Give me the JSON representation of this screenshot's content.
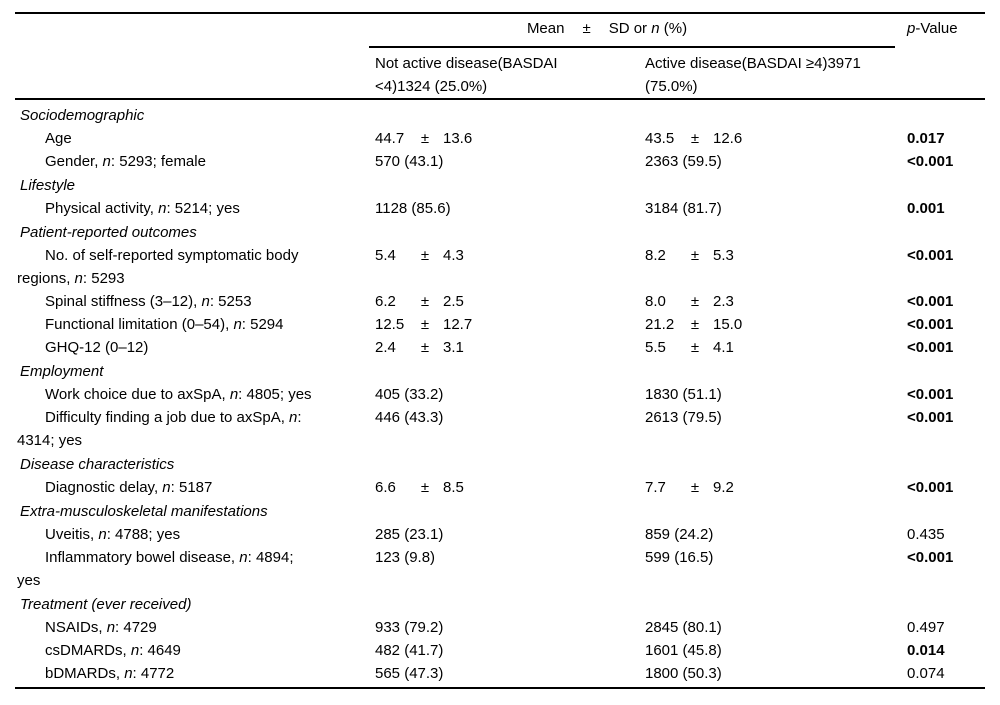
{
  "colors": {
    "background": "#ffffff",
    "text": "#000000",
    "rule": "#000000"
  },
  "table": {
    "pm_symbol": "±",
    "header": {
      "span_title": {
        "mean": "Mean",
        "pm": "±",
        "rest": "SD or *n* (%)"
      },
      "p_value": "*p*-Value",
      "col1_lines": [
        "Not active disease(BASDAI",
        "<4)1324 (25.0%)"
      ],
      "col2_lines": [
        "Active disease(BASDAI ≥4)3971",
        "(75.0%)"
      ]
    },
    "rows": [
      {
        "type": "section",
        "label": "Sociodemographic"
      },
      {
        "type": "item",
        "lines": [
          "Age"
        ],
        "col1": {
          "mean": "44.7",
          "sd": "13.6"
        },
        "col2": {
          "mean": "43.5",
          "sd": "12.6"
        },
        "p": "0.017",
        "p_bold": true
      },
      {
        "type": "item",
        "lines": [
          "Gender, *n*: 5293; female"
        ],
        "col1": {
          "text": "570 (43.1)"
        },
        "col2": {
          "text": "2363 (59.5)"
        },
        "p": "<0.001",
        "p_bold": true
      },
      {
        "type": "section",
        "label": "Lifestyle"
      },
      {
        "type": "item",
        "lines": [
          "Physical activity, *n*: 5214; yes"
        ],
        "col1": {
          "text": "1128 (85.6)"
        },
        "col2": {
          "text": "3184 (81.7)"
        },
        "p": "0.001",
        "p_bold": true
      },
      {
        "type": "section",
        "label": "Patient-reported outcomes"
      },
      {
        "type": "item",
        "lines": [
          "No. of self-reported symptomatic body",
          "regions, *n*: 5293"
        ],
        "col1": {
          "mean": "5.4",
          "sd": "4.3"
        },
        "col2": {
          "mean": "8.2",
          "sd": "5.3"
        },
        "p": "<0.001",
        "p_bold": true
      },
      {
        "type": "item",
        "lines": [
          "Spinal stiffness (3–12), *n*: 5253"
        ],
        "col1": {
          "mean": "6.2",
          "sd": "2.5"
        },
        "col2": {
          "mean": "8.0",
          "sd": "2.3"
        },
        "p": "<0.001",
        "p_bold": true
      },
      {
        "type": "item",
        "lines": [
          "Functional limitation (0–54), *n*: 5294"
        ],
        "col1": {
          "mean": "12.5",
          "sd": "12.7"
        },
        "col2": {
          "mean": "21.2",
          "sd": "15.0"
        },
        "p": "<0.001",
        "p_bold": true
      },
      {
        "type": "item",
        "lines": [
          "GHQ-12 (0–12)"
        ],
        "col1": {
          "mean": "2.4",
          "sd": "3.1"
        },
        "col2": {
          "mean": "5.5",
          "sd": "4.1"
        },
        "p": "<0.001",
        "p_bold": true
      },
      {
        "type": "section",
        "label": "Employment"
      },
      {
        "type": "item",
        "lines": [
          "Work choice due to axSpA, *n*: 4805; yes"
        ],
        "col1": {
          "text": "405 (33.2)"
        },
        "col2": {
          "text": "1830 (51.1)"
        },
        "p": "<0.001",
        "p_bold": true
      },
      {
        "type": "item",
        "lines": [
          "Difficulty finding a job due to axSpA, *n*:",
          "4314; yes"
        ],
        "col1": {
          "text": "446 (43.3)"
        },
        "col2": {
          "text": "2613 (79.5)"
        },
        "p": "<0.001",
        "p_bold": true
      },
      {
        "type": "section",
        "label": "Disease characteristics"
      },
      {
        "type": "item",
        "lines": [
          "Diagnostic delay, *n*: 5187"
        ],
        "col1": {
          "mean": "6.6",
          "sd": "8.5"
        },
        "col2": {
          "mean": "7.7",
          "sd": "9.2"
        },
        "p": "<0.001",
        "p_bold": true
      },
      {
        "type": "section",
        "label": "Extra-musculoskeletal manifestations"
      },
      {
        "type": "item",
        "lines": [
          "Uveitis, *n*: 4788; yes"
        ],
        "col1": {
          "text": "285 (23.1)"
        },
        "col2": {
          "text": "859 (24.2)"
        },
        "p": "0.435",
        "p_bold": false
      },
      {
        "type": "item",
        "lines": [
          "Inflammatory bowel disease, *n*: 4894;",
          "yes"
        ],
        "col1": {
          "text": "123 (9.8)"
        },
        "col2": {
          "text": "599 (16.5)"
        },
        "p": "<0.001",
        "p_bold": true
      },
      {
        "type": "section",
        "label": "Treatment (ever received)"
      },
      {
        "type": "item",
        "lines": [
          "NSAIDs, *n*: 4729"
        ],
        "col1": {
          "text": "933 (79.2)"
        },
        "col2": {
          "text": "2845 (80.1)"
        },
        "p": "0.497",
        "p_bold": false
      },
      {
        "type": "item",
        "lines": [
          "csDMARDs, *n*: 4649"
        ],
        "col1": {
          "text": "482 (41.7)"
        },
        "col2": {
          "text": "1601 (45.8)"
        },
        "p": "0.014",
        "p_bold": true
      },
      {
        "type": "item",
        "lines": [
          "bDMARDs, *n*: 4772"
        ],
        "col1": {
          "text": "565 (47.3)"
        },
        "col2": {
          "text": "1800 (50.3)"
        },
        "p": "0.074",
        "p_bold": false
      }
    ]
  }
}
